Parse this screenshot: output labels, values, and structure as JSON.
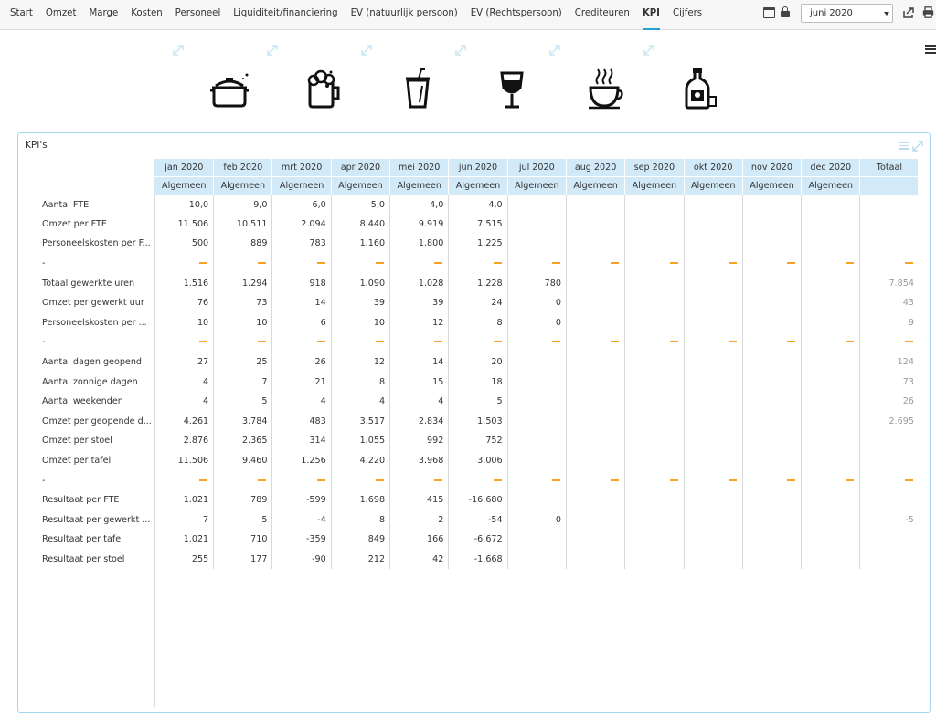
{
  "nav": {
    "items": [
      "Start",
      "Omzet",
      "Marge",
      "Kosten",
      "Personeel",
      "Liquiditeit/financiering",
      "EV (natuurlijk persoon)",
      "EV (Rechtspersoon)",
      "Crediteuren",
      "KPI",
      "Cijfers"
    ],
    "active": "KPI",
    "month_select": "juni 2020",
    "icons": [
      "calendar-icon",
      "lock-icon",
      "export-icon",
      "print-icon"
    ]
  },
  "categories": [
    {
      "name": "pot-icon"
    },
    {
      "name": "beer-mug-icon"
    },
    {
      "name": "soda-cup-icon"
    },
    {
      "name": "wine-glass-icon"
    },
    {
      "name": "coffee-cup-icon"
    },
    {
      "name": "liquor-bottle-icon"
    }
  ],
  "panel": {
    "title": "KPI's",
    "months": [
      "jan 2020",
      "feb 2020",
      "mrt 2020",
      "apr 2020",
      "mei 2020",
      "jun 2020",
      "jul 2020",
      "aug 2020",
      "sep 2020",
      "okt 2020",
      "nov 2020",
      "dec 2020"
    ],
    "total_label": "Totaal",
    "sub_label": "Algemeen",
    "rows": [
      {
        "label": "Aantal FTE",
        "values": [
          "10,0",
          "9,0",
          "6,0",
          "5,0",
          "4,0",
          "4,0",
          "",
          "",
          "",
          "",
          "",
          ""
        ],
        "total": ""
      },
      {
        "label": "Omzet per FTE",
        "values": [
          "11.506",
          "10.511",
          "2.094",
          "8.440",
          "9.919",
          "7.515",
          "",
          "",
          "",
          "",
          "",
          ""
        ],
        "total": ""
      },
      {
        "label": "Personeelskosten per F...",
        "values": [
          "500",
          "889",
          "783",
          "1.160",
          "1.800",
          "1.225",
          "",
          "",
          "",
          "",
          "",
          ""
        ],
        "total": ""
      },
      {
        "label": "-",
        "sep": true
      },
      {
        "label": "Totaal gewerkte uren",
        "values": [
          "1.516",
          "1.294",
          "918",
          "1.090",
          "1.028",
          "1.228",
          "780",
          "",
          "",
          "",
          "",
          ""
        ],
        "total": "7.854"
      },
      {
        "label": "Omzet per gewerkt uur",
        "values": [
          "76",
          "73",
          "14",
          "39",
          "39",
          "24",
          "0",
          "",
          "",
          "",
          "",
          ""
        ],
        "total": "43"
      },
      {
        "label": "Personeelskosten per ...",
        "values": [
          "10",
          "10",
          "6",
          "10",
          "12",
          "8",
          "0",
          "",
          "",
          "",
          "",
          ""
        ],
        "total": "9"
      },
      {
        "label": "-",
        "sep": true
      },
      {
        "label": "Aantal dagen geopend",
        "values": [
          "27",
          "25",
          "26",
          "12",
          "14",
          "20",
          "",
          "",
          "",
          "",
          "",
          ""
        ],
        "total": "124"
      },
      {
        "label": "Aantal zonnige dagen",
        "values": [
          "4",
          "7",
          "21",
          "8",
          "15",
          "18",
          "",
          "",
          "",
          "",
          "",
          ""
        ],
        "total": "73"
      },
      {
        "label": "Aantal weekenden",
        "values": [
          "4",
          "5",
          "4",
          "4",
          "4",
          "5",
          "",
          "",
          "",
          "",
          "",
          ""
        ],
        "total": "26"
      },
      {
        "label": "Omzet per geopende d...",
        "values": [
          "4.261",
          "3.784",
          "483",
          "3.517",
          "2.834",
          "1.503",
          "",
          "",
          "",
          "",
          "",
          ""
        ],
        "total": "2.695"
      },
      {
        "label": "Omzet per stoel",
        "values": [
          "2.876",
          "2.365",
          "314",
          "1.055",
          "992",
          "752",
          "",
          "",
          "",
          "",
          "",
          ""
        ],
        "total": ""
      },
      {
        "label": "Omzet per tafel",
        "values": [
          "11.506",
          "9.460",
          "1.256",
          "4.220",
          "3.968",
          "3.006",
          "",
          "",
          "",
          "",
          "",
          ""
        ],
        "total": ""
      },
      {
        "label": "-",
        "sep": true
      },
      {
        "label": "Resultaat per FTE",
        "values": [
          "1.021",
          "789",
          "-599",
          "1.698",
          "415",
          "-16.680",
          "",
          "",
          "",
          "",
          "",
          ""
        ],
        "total": ""
      },
      {
        "label": "Resultaat per gewerkt ...",
        "values": [
          "7",
          "5",
          "-4",
          "8",
          "2",
          "-54",
          "0",
          "",
          "",
          "",
          "",
          ""
        ],
        "total": "-5"
      },
      {
        "label": "Resultaat per tafel",
        "values": [
          "1.021",
          "710",
          "-359",
          "849",
          "166",
          "-6.672",
          "",
          "",
          "",
          "",
          "",
          ""
        ],
        "total": ""
      },
      {
        "label": "Resultaat per stoel",
        "values": [
          "255",
          "177",
          "-90",
          "212",
          "42",
          "-1.668",
          "",
          "",
          "",
          "",
          "",
          ""
        ],
        "total": ""
      }
    ]
  },
  "colors": {
    "accent": "#2a9fd6",
    "header_bg": "#d2eaf8",
    "dash": "#f7a327",
    "panel_border": "#a6d7f0"
  }
}
